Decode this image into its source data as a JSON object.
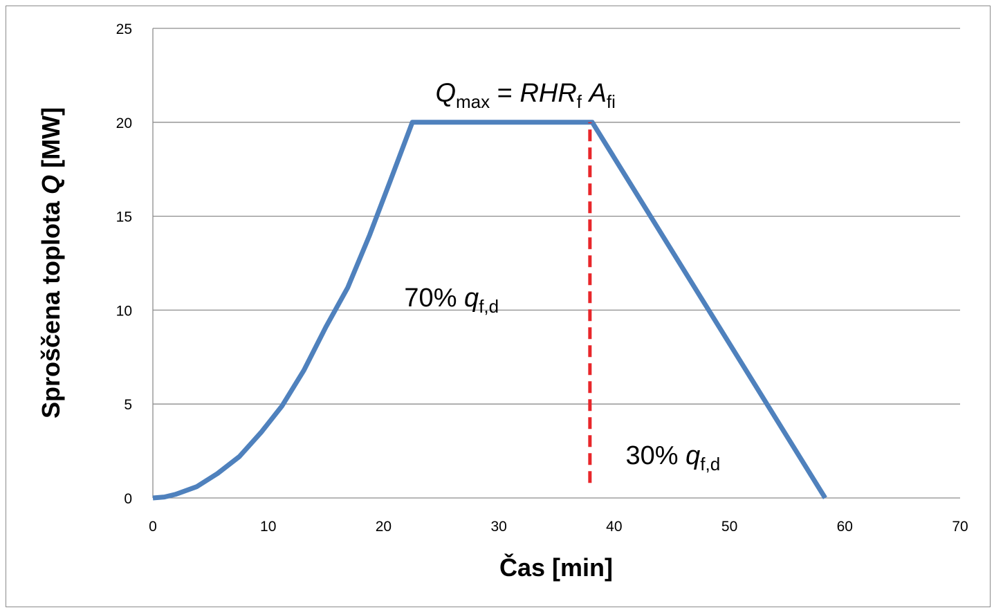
{
  "chart_data": {
    "type": "line",
    "title": "",
    "xlabel": "Čas [min]",
    "ylabel_parts": {
      "prefix": "Sproščena toplota ",
      "symbol": "Q",
      "suffix": " [MW]"
    },
    "xlim": [
      0,
      70
    ],
    "ylim": [
      0,
      25
    ],
    "xticks": [
      0,
      10,
      20,
      30,
      40,
      50,
      60,
      70
    ],
    "yticks": [
      0,
      5,
      10,
      15,
      20,
      25
    ],
    "grid": "horizontal",
    "legend": "none",
    "colors": {
      "series": "#4f81bd",
      "divider": "#e8262a",
      "grid": "#8c8c8c"
    },
    "series": [
      {
        "x": [
          0,
          1,
          2,
          3.8,
          5.6,
          7.5,
          9.4,
          11.2,
          13.1,
          15,
          16.9,
          18.8,
          20.6,
          22.5,
          38.1,
          58.3
        ],
        "values": [
          0,
          0.05,
          0.2,
          0.6,
          1.3,
          2.2,
          3.5,
          4.9,
          6.8,
          9.1,
          11.2,
          14,
          16.9,
          20,
          20,
          0
        ]
      }
    ],
    "divider": {
      "x": 37.9,
      "y_from": 0.8,
      "y_to": 20
    },
    "annotations": [
      {
        "id": "qmax",
        "x": 24.5,
        "y": 21.1,
        "parts": [
          {
            "t": "Q",
            "i": true
          },
          {
            "t": "max",
            "sub": true
          },
          {
            "t": " = "
          },
          {
            "t": "RHR",
            "i": true
          },
          {
            "t": "f",
            "sub": true
          },
          {
            "t": " "
          },
          {
            "t": "A",
            "i": true
          },
          {
            "t": "fi",
            "sub": true
          }
        ]
      },
      {
        "id": "pct70",
        "x": 21.8,
        "y": 10.2,
        "parts": [
          {
            "t": "70% "
          },
          {
            "t": "q",
            "i": true
          },
          {
            "t": "f,d",
            "sub": true
          }
        ]
      },
      {
        "id": "pct30",
        "x": 41,
        "y": 1.8,
        "parts": [
          {
            "t": "30% "
          },
          {
            "t": "q",
            "i": true
          },
          {
            "t": "f,d",
            "sub": true
          }
        ]
      }
    ]
  }
}
